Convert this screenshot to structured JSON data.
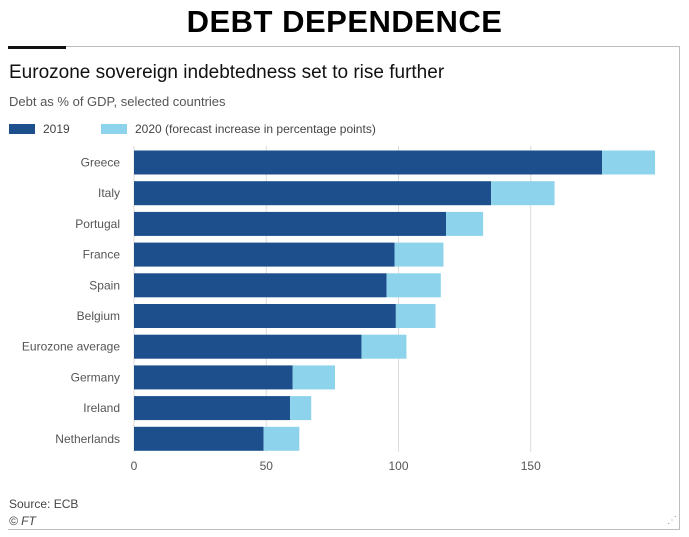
{
  "headline": "DEBT DEPENDENCE",
  "source": "Source: ECB",
  "copyright": "© FT",
  "chart_data": {
    "type": "bar",
    "orientation": "horizontal",
    "stacked": true,
    "title": "Eurozone sovereign indebtedness set to rise further",
    "subtitle": "Debt as % of GDP, selected countries",
    "xlabel": "",
    "ylabel": "",
    "xlim": [
      0,
      200
    ],
    "xticks": [
      0,
      50,
      100,
      150
    ],
    "grid": true,
    "legend_position": "top-left",
    "categories": [
      "Greece",
      "Italy",
      "Portugal",
      "France",
      "Spain",
      "Belgium",
      "Eurozone average",
      "Germany",
      "Ireland",
      "Netherlands"
    ],
    "series": [
      {
        "name": "2019",
        "color": "#1c4f8b",
        "values": [
          177,
          135,
          118,
          98.5,
          95.5,
          99,
          86,
          60,
          59,
          49
        ]
      },
      {
        "name": "2020 (forecast increase in percentage points)",
        "color": "#8ed3ec",
        "values": [
          20,
          24,
          14,
          18.5,
          20.5,
          15,
          17,
          16,
          8,
          13.5
        ]
      }
    ],
    "colors": {
      "bar_2019": "#1c4f8b",
      "bar_2020": "#8ed3ec",
      "grid": "#dcdcdc",
      "axis_text": "#555555"
    }
  }
}
